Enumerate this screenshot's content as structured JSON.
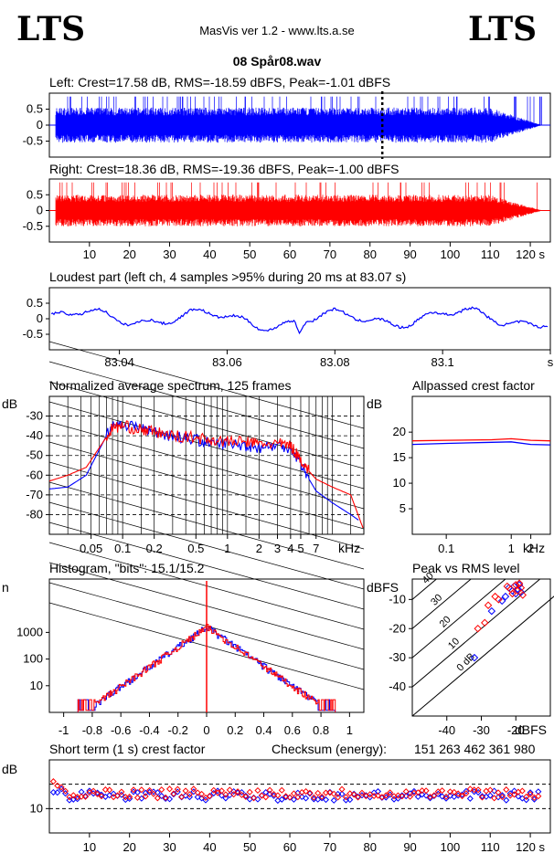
{
  "header": {
    "logo_left": "LTS",
    "logo_right": "LTS",
    "app_title": "MasVis ver 1.2 - www.lts.a.se",
    "file_name": "08 Spår08.wav"
  },
  "colors": {
    "left": "#0000ff",
    "right": "#ff0000",
    "axis": "#000000",
    "grid": "#000000"
  },
  "chart_data": [
    {
      "type": "line",
      "name": "left-waveform",
      "title": "Left: Crest=17.58 dB, RMS=-18.59 dBFS, Peak=-1.01 dBFS",
      "yticks": [
        "0.5",
        "0",
        "-0.5"
      ],
      "ytick_values": [
        0.5,
        0,
        -0.5
      ],
      "ylim": [
        -1,
        1
      ],
      "xlim": [
        0,
        125
      ],
      "marker_x": 83.07,
      "envelope": {
        "start": 1.5,
        "end": 123,
        "fade_from": 110,
        "mean_amp": 0.55,
        "peak_amp": 0.89
      }
    },
    {
      "type": "line",
      "name": "right-waveform",
      "title": "Right: Crest=18.36 dB, RMS=-19.36 dBFS, Peak=-1.00 dBFS",
      "yticks": [
        "0.5",
        "0",
        "-0.5"
      ],
      "ytick_values": [
        0.5,
        0,
        -0.5
      ],
      "ylim": [
        -1,
        1
      ],
      "xlim": [
        0,
        125
      ],
      "xticks": [
        "10",
        "20",
        "30",
        "40",
        "50",
        "60",
        "70",
        "80",
        "90",
        "100",
        "110",
        "120 s"
      ],
      "xtick_values": [
        10,
        20,
        30,
        40,
        50,
        60,
        70,
        80,
        90,
        100,
        110,
        120
      ],
      "envelope": {
        "start": 1.5,
        "end": 123,
        "fade_from": 110,
        "mean_amp": 0.5,
        "peak_amp": 0.89
      }
    },
    {
      "type": "line",
      "name": "loudest-part",
      "title": "Loudest part (left  ch, 4 samples >95% during 20 ms at 83.07 s)",
      "yticks": [
        "0.5",
        "0",
        "-0.5"
      ],
      "ytick_values": [
        0.5,
        0,
        -0.5
      ],
      "ylim": [
        -1,
        1
      ],
      "xlim": [
        83.027,
        83.12
      ],
      "xticks": [
        "83.04",
        "83.06",
        "83.08",
        "83.1",
        "s"
      ],
      "xtick_values": [
        83.04,
        83.06,
        83.08,
        83.1,
        83.12
      ]
    },
    {
      "type": "line",
      "name": "spectrum",
      "title": "Normalized average spectrum, 125 frames",
      "ylabel": "dB",
      "xlabel": "kHz",
      "yticks": [
        "-30",
        "-40",
        "-50",
        "-60",
        "-70",
        "-80"
      ],
      "ytick_values": [
        -30,
        -40,
        -50,
        -60,
        -70,
        -80
      ],
      "ylim": [
        -90,
        -20
      ],
      "xlim": [
        0.02,
        20
      ],
      "xscale": "log",
      "xticks": [
        "0.05",
        "0.1",
        "0.2",
        "0.5",
        "1",
        "2",
        "3",
        "4",
        "5",
        "7"
      ],
      "xtick_values": [
        0.05,
        0.1,
        0.2,
        0.5,
        1,
        2,
        3,
        4,
        5,
        7
      ],
      "series": [
        {
          "color": "blue",
          "x": [
            0.02,
            0.03,
            0.045,
            0.06,
            0.08,
            0.1,
            0.15,
            0.2,
            0.3,
            0.5,
            0.7,
            1,
            1.5,
            2,
            3,
            4,
            5,
            6,
            7,
            10,
            15,
            18
          ],
          "y": [
            -67,
            -66,
            -60,
            -47,
            -34,
            -34,
            -36,
            -38,
            -40,
            -42,
            -44,
            -44,
            -45,
            -46,
            -45,
            -46,
            -54,
            -62,
            -68,
            -74,
            -80,
            -83
          ]
        },
        {
          "color": "red",
          "x": [
            0.02,
            0.03,
            0.045,
            0.06,
            0.08,
            0.1,
            0.15,
            0.2,
            0.3,
            0.5,
            0.7,
            1,
            1.5,
            2,
            3,
            4,
            5,
            6,
            7,
            10,
            15,
            20
          ],
          "y": [
            -63,
            -60,
            -56,
            -46,
            -36,
            -35,
            -37,
            -38,
            -40,
            -41,
            -42,
            -43,
            -43,
            -44,
            -44,
            -45,
            -52,
            -58,
            -62,
            -66,
            -70,
            -88
          ]
        }
      ]
    },
    {
      "type": "line",
      "name": "allpassed-crest",
      "title": "Allpassed crest factor",
      "ylabel": "dB",
      "xlabel": "kHz",
      "yticks": [
        "20",
        "15",
        "10",
        "5"
      ],
      "ytick_values": [
        20,
        15,
        10,
        5
      ],
      "ylim": [
        0,
        27
      ],
      "xscale": "log",
      "xlim": [
        0.03,
        4
      ],
      "xticks": [
        "0.1",
        "1",
        "2"
      ],
      "xtick_values": [
        0.1,
        1,
        2
      ],
      "series": [
        {
          "color": "blue",
          "x": [
            0.03,
            0.1,
            0.5,
            1,
            2,
            4
          ],
          "y": [
            17.6,
            17.8,
            18.0,
            18.1,
            17.6,
            17.5
          ]
        },
        {
          "color": "red",
          "x": [
            0.03,
            0.1,
            0.5,
            1,
            2,
            4
          ],
          "y": [
            18.3,
            18.4,
            18.5,
            18.7,
            18.4,
            18.3
          ]
        }
      ]
    },
    {
      "type": "line",
      "name": "histogram",
      "title": "Histogram, \"bits\": 15.1/15.2",
      "ylabel": "n",
      "yscale": "log",
      "yticks": [
        "1000",
        "100",
        "10"
      ],
      "ytick_values": [
        1000,
        100,
        10
      ],
      "ylim": [
        1,
        100000
      ],
      "xlim": [
        -1.1,
        1.1
      ],
      "xticks": [
        "-1",
        "-0.8",
        "-0.6",
        "-0.4",
        "-0.2",
        "0",
        "0.2",
        "0.4",
        "0.6",
        "0.8",
        "1"
      ],
      "xtick_values": [
        -1,
        -0.8,
        -0.6,
        -0.4,
        -0.2,
        0,
        0.2,
        0.4,
        0.6,
        0.8,
        1
      ],
      "peak_n": 1600,
      "range_left": [
        -0.88,
        -0.9
      ],
      "range_right": [
        0.88,
        0.9
      ]
    },
    {
      "type": "scatter",
      "name": "peak-vs-rms",
      "title": "Peak vs RMS level",
      "ylabel": "dBFS",
      "xlabel": "dBFS",
      "yticks": [
        "-10",
        "-20",
        "-30",
        "-40"
      ],
      "ytick_values": [
        -10,
        -20,
        -30,
        -40
      ],
      "xticks": [
        "-40",
        "-30",
        "-20"
      ],
      "xtick_values": [
        -40,
        -30,
        -20
      ],
      "xlim": [
        -50,
        -10
      ],
      "ylim": [
        -50,
        -3
      ],
      "diagonals": [
        "40",
        "30",
        "20",
        "10",
        "0 dB"
      ],
      "series": [
        {
          "color": "blue",
          "x": [
            -22,
            -21,
            -20.5,
            -20,
            -19.5,
            -19,
            -18.5,
            -23,
            -24,
            -27,
            -32
          ],
          "y": [
            -6,
            -7,
            -5.5,
            -8,
            -6.5,
            -5,
            -7.5,
            -9,
            -10.5,
            -14,
            -30
          ]
        },
        {
          "color": "red",
          "x": [
            -22.5,
            -21.5,
            -21,
            -20,
            -19.5,
            -19,
            -18.5,
            -18,
            -25,
            -28,
            -29,
            -31,
            -26
          ],
          "y": [
            -5.5,
            -6.5,
            -8,
            -5,
            -7,
            -4.5,
            -6,
            -8.5,
            -10,
            -12,
            -18,
            -20,
            -9
          ]
        }
      ]
    },
    {
      "type": "scatter",
      "name": "short-term-crest",
      "title": "Short term (1 s) crest factor",
      "checksum_label": "Checksum (energy):",
      "checksum_value": "151 263 462 361 980",
      "ylabel": "dB",
      "yticks": [
        "10"
      ],
      "ytick_values": [
        10
      ],
      "ylim": [
        0,
        30
      ],
      "dashed": [
        10,
        20
      ],
      "xlim": [
        0,
        125
      ],
      "xticks": [
        "10",
        "20",
        "30",
        "40",
        "50",
        "60",
        "70",
        "80",
        "90",
        "100",
        "110",
        "120 s"
      ],
      "xtick_values": [
        10,
        20,
        30,
        40,
        50,
        60,
        70,
        80,
        90,
        100,
        110,
        120
      ],
      "mean_left": 15.3,
      "mean_right": 16.3
    }
  ]
}
